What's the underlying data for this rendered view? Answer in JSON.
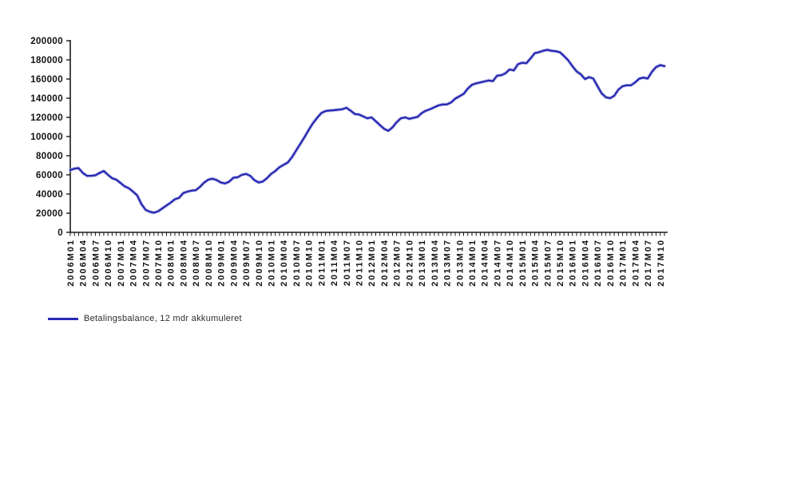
{
  "chart_data": {
    "type": "line",
    "title": "",
    "xlabel": "",
    "ylabel": "",
    "grid": false,
    "legend_position": "bottom-left",
    "ylim": [
      0,
      200000
    ],
    "y_ticks": [
      0,
      20000,
      40000,
      60000,
      80000,
      100000,
      120000,
      140000,
      160000,
      180000,
      200000
    ],
    "x_tick_every": 3,
    "x_tick_rotation_deg": -90,
    "colors": {
      "line": "#2a2ab4",
      "halo": "#9fa0e0",
      "axis": "#1a1a1a",
      "tick_text": "#111111",
      "legend_text": "#2b2b2b"
    },
    "x": [
      "2006M01",
      "2006M02",
      "2006M03",
      "2006M04",
      "2006M05",
      "2006M06",
      "2006M07",
      "2006M08",
      "2006M09",
      "2006M10",
      "2006M11",
      "2006M12",
      "2007M01",
      "2007M02",
      "2007M03",
      "2007M04",
      "2007M05",
      "2007M06",
      "2007M07",
      "2007M08",
      "2007M09",
      "2007M10",
      "2007M11",
      "2007M12",
      "2008M01",
      "2008M02",
      "2008M03",
      "2008M04",
      "2008M05",
      "2008M06",
      "2008M07",
      "2008M08",
      "2008M09",
      "2008M10",
      "2008M11",
      "2008M12",
      "2009M01",
      "2009M02",
      "2009M03",
      "2009M04",
      "2009M05",
      "2009M06",
      "2009M07",
      "2009M08",
      "2009M09",
      "2009M10",
      "2009M11",
      "2009M12",
      "2010M01",
      "2010M02",
      "2010M03",
      "2010M04",
      "2010M05",
      "2010M06",
      "2010M07",
      "2010M08",
      "2010M09",
      "2010M10",
      "2010M11",
      "2010M12",
      "2011M01",
      "2011M02",
      "2011M03",
      "2011M04",
      "2011M05",
      "2011M06",
      "2011M07",
      "2011M08",
      "2011M09",
      "2011M10",
      "2011M11",
      "2011M12",
      "2012M01",
      "2012M02",
      "2012M03",
      "2012M04",
      "2012M05",
      "2012M06",
      "2012M07",
      "2012M08",
      "2012M09",
      "2012M10",
      "2012M11",
      "2012M12",
      "2013M01",
      "2013M02",
      "2013M03",
      "2013M04",
      "2013M05",
      "2013M06",
      "2013M07",
      "2013M08",
      "2013M09",
      "2013M10",
      "2013M11",
      "2013M12",
      "2014M01",
      "2014M02",
      "2014M03",
      "2014M04",
      "2014M05",
      "2014M06",
      "2014M07",
      "2014M08",
      "2014M09",
      "2014M10",
      "2014M11",
      "2014M12",
      "2015M01",
      "2015M02",
      "2015M03",
      "2015M04",
      "2015M05",
      "2015M06",
      "2015M07",
      "2015M08",
      "2015M09",
      "2015M10",
      "2015M11",
      "2015M12",
      "2016M01",
      "2016M02",
      "2016M03",
      "2016M04",
      "2016M05",
      "2016M06",
      "2016M07",
      "2016M08",
      "2016M09",
      "2016M10",
      "2016M11",
      "2016M12",
      "2017M01",
      "2017M02",
      "2017M03",
      "2017M04",
      "2017M05",
      "2017M06",
      "2017M07",
      "2017M08",
      "2017M09",
      "2017M10",
      "2017M11"
    ],
    "series": [
      {
        "name": "Betalingsbalance, 12 mdr akkumuleret",
        "color": "#2a2ab4",
        "values": [
          65000,
          66500,
          67000,
          62000,
          59000,
          59000,
          59500,
          62000,
          64000,
          60000,
          56500,
          55000,
          51500,
          48000,
          46000,
          42500,
          38500,
          29500,
          23500,
          21500,
          20500,
          22000,
          25000,
          28000,
          31000,
          34500,
          36000,
          41000,
          42500,
          43500,
          44000,
          47500,
          52000,
          55000,
          56000,
          54500,
          52000,
          51000,
          53000,
          57000,
          57500,
          60000,
          61000,
          59000,
          54500,
          52000,
          53000,
          56500,
          61000,
          64000,
          68000,
          70500,
          73000,
          78500,
          85500,
          92500,
          99500,
          107000,
          114000,
          119500,
          124500,
          126600,
          127200,
          127500,
          128000,
          128500,
          130000,
          127000,
          123500,
          123000,
          121000,
          119000,
          120000,
          116000,
          112000,
          108000,
          106000,
          109500,
          115000,
          119000,
          120000,
          118500,
          119500,
          120500,
          124500,
          127000,
          128500,
          130500,
          132500,
          133500,
          133500,
          135500,
          139500,
          142000,
          144500,
          150000,
          154000,
          155500,
          156500,
          157500,
          158500,
          157800,
          163500,
          164000,
          166000,
          170000,
          169000,
          175500,
          177000,
          176500,
          181500,
          187000,
          188000,
          189500,
          190500,
          189500,
          189000,
          188000,
          184000,
          179500,
          173500,
          168000,
          165000,
          160000,
          162000,
          160500,
          152500,
          145000,
          141000,
          140000,
          142500,
          149000,
          152500,
          153500,
          153500,
          156500,
          160500,
          161500,
          160500,
          167500,
          172500,
          174500,
          173500
        ]
      }
    ]
  }
}
